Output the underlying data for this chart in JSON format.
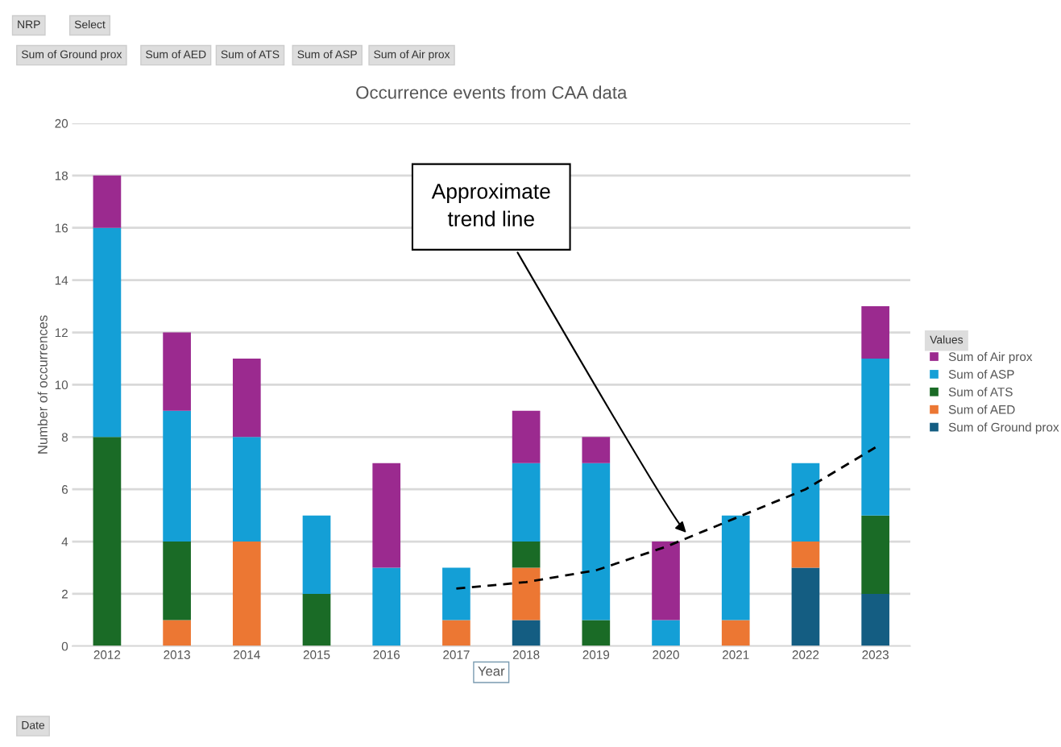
{
  "chart_data": {
    "type": "bar",
    "stacked": true,
    "title": "Occurrence events from CAA data",
    "xlabel": "Year",
    "ylabel": "Number of occurrences",
    "legend_title": "Values",
    "legend": "right",
    "grid": "y",
    "categories": [
      "2012",
      "2013",
      "2014",
      "2015",
      "2016",
      "2017",
      "2018",
      "2019",
      "2020",
      "2021",
      "2022",
      "2023"
    ],
    "ylim": [
      0,
      20
    ],
    "yticks": [
      0,
      2,
      4,
      6,
      8,
      10,
      12,
      14,
      16,
      18,
      20
    ],
    "series": [
      {
        "name": "Sum of Ground prox",
        "color": "#145d82",
        "values": [
          0,
          0,
          0,
          0,
          0,
          0,
          1,
          0,
          0,
          0,
          3,
          2
        ]
      },
      {
        "name": "Sum of AED",
        "color": "#ec7733",
        "values": [
          0,
          1,
          4,
          0,
          0,
          1,
          2,
          0,
          0,
          1,
          1,
          0
        ]
      },
      {
        "name": "Sum of ATS",
        "color": "#1a6b26",
        "values": [
          8,
          3,
          0,
          2,
          0,
          0,
          1,
          1,
          0,
          0,
          0,
          3
        ]
      },
      {
        "name": "Sum of ASP",
        "color": "#149fd6",
        "values": [
          8,
          5,
          4,
          3,
          3,
          2,
          3,
          6,
          1,
          4,
          3,
          6
        ]
      },
      {
        "name": "Sum of Air prox",
        "color": "#9b2a8f",
        "values": [
          2,
          3,
          3,
          0,
          4,
          0,
          2,
          1,
          3,
          0,
          0,
          2
        ]
      },
      {
        "type": "line",
        "color": "#000000",
        "line_style": "dashed",
        "values": [
          null,
          null,
          null,
          null,
          null,
          2.2,
          2.45,
          2.9,
          3.8,
          4.9,
          6.0,
          7.6
        ]
      }
    ],
    "annotations": [
      "NRP",
      "Select",
      "Sum of Ground prox",
      "Sum of AED",
      "Sum of ATS",
      "Sum of ASP",
      "Sum of Air prox",
      "Date",
      "Approximate\ntrend line"
    ]
  }
}
